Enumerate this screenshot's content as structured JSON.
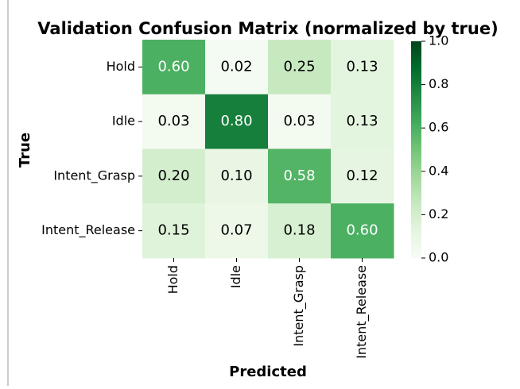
{
  "chart_data": {
    "type": "heatmap",
    "title": "Validation Confusion Matrix (normalized by true)",
    "xlabel": "Predicted",
    "ylabel": "True",
    "x_categories": [
      "Hold",
      "Idle",
      "Intent_Grasp",
      "Intent_Release"
    ],
    "y_categories": [
      "Hold",
      "Idle",
      "Intent_Grasp",
      "Intent_Release"
    ],
    "values": [
      [
        0.6,
        0.02,
        0.25,
        0.13
      ],
      [
        0.03,
        0.8,
        0.03,
        0.13
      ],
      [
        0.2,
        0.1,
        0.58,
        0.12
      ],
      [
        0.15,
        0.07,
        0.18,
        0.6
      ]
    ],
    "value_labels": [
      [
        "0.60",
        "0.02",
        "0.25",
        "0.13"
      ],
      [
        "0.03",
        "0.80",
        "0.03",
        "0.13"
      ],
      [
        "0.20",
        "0.10",
        "0.58",
        "0.12"
      ],
      [
        "0.15",
        "0.07",
        "0.18",
        "0.60"
      ]
    ],
    "colormap": "Greens",
    "clim": [
      0,
      1
    ],
    "cticks": [
      {
        "value": 0,
        "label": "0.0"
      },
      0.2,
      0.4,
      0.6,
      0.8,
      {
        "value": 1,
        "label": "1.0"
      }
    ]
  }
}
